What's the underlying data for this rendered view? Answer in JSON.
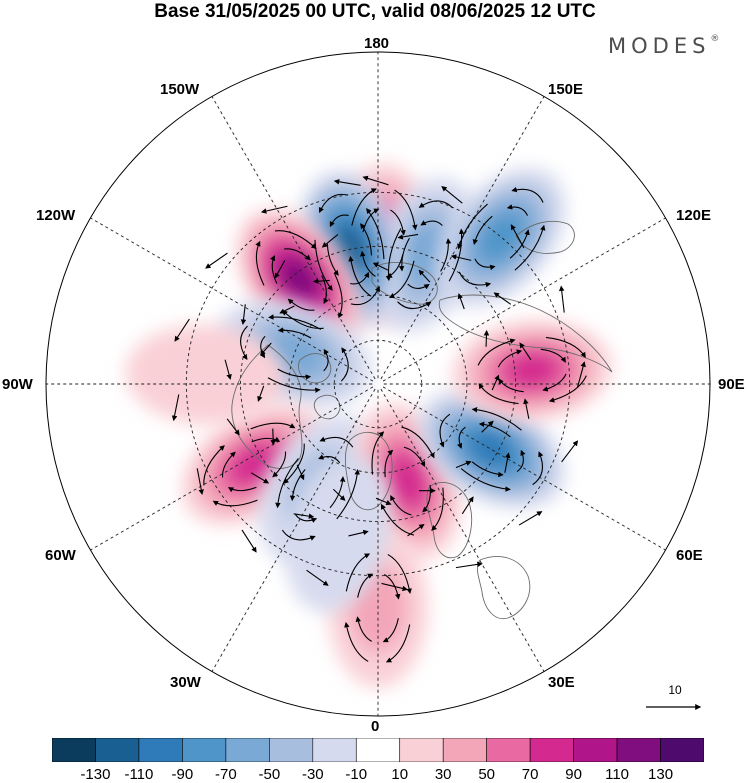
{
  "title": "Base 31/05/2025 00 UTC, valid 08/06/2025 12 UTC",
  "brand": {
    "name": "MODES",
    "mark": "®"
  },
  "longitude_labels": {
    "lon_0": "0",
    "lon_30e": "30E",
    "lon_60e": "60E",
    "lon_90e": "90E",
    "lon_120e": "120E",
    "lon_150e": "150E",
    "lon_180": "180",
    "lon_150w": "150W",
    "lon_120w": "120W",
    "lon_90w": "90W",
    "lon_60w": "60W",
    "lon_30w": "30W"
  },
  "vector_reference": {
    "label": "10"
  },
  "colorbar": {
    "labels": [
      "-130",
      "-110",
      "-90",
      "-70",
      "-50",
      "-30",
      "-10",
      "10",
      "30",
      "50",
      "70",
      "90",
      "110",
      "130"
    ],
    "colors": [
      "#0b3c5d",
      "#1a5f91",
      "#2f7ab8",
      "#4f95c9",
      "#7aa9d6",
      "#a8bedf",
      "#d6daee",
      "#ffffff",
      "#f9d0d6",
      "#f3a6b8",
      "#e96aa3",
      "#d42a8f",
      "#b0168a",
      "#800e7e",
      "#4f0a6e"
    ]
  },
  "colors": {
    "land_outline": "#6b6b6b",
    "grid": "#222222",
    "arrow": "#000000"
  },
  "anomaly_features": [
    {
      "kind": "positive",
      "name": "anomaly-north-pacific-high",
      "lon": 178,
      "lat": 44,
      "value": 80
    },
    {
      "kind": "negative",
      "name": "anomaly-bering-low",
      "lon": 160,
      "lat": 45,
      "value": -60
    },
    {
      "kind": "negative",
      "name": "anomaly-alaska-low",
      "lon": -168,
      "lat": 45,
      "value": -110
    },
    {
      "kind": "positive",
      "name": "anomaly-northwest-america-high",
      "lon": -143,
      "lat": 47,
      "value": 120
    },
    {
      "kind": "negative",
      "name": "anomaly-canada-low",
      "lon": -110,
      "lat": 60,
      "value": -60
    },
    {
      "kind": "positive",
      "name": "anomaly-atlantic-high",
      "lon": -57,
      "lat": 42,
      "value": 80
    },
    {
      "kind": "negative",
      "name": "anomaly-north-atlantic-low",
      "lon": -30,
      "lat": 50,
      "value": -30
    },
    {
      "kind": "positive",
      "name": "anomaly-europe-high",
      "lon": 17,
      "lat": 56,
      "value": 70
    },
    {
      "kind": "negative",
      "name": "anomaly-west-siberia-low",
      "lon": 60,
      "lat": 47,
      "value": -100
    },
    {
      "kind": "positive",
      "name": "anomaly-central-asia-high",
      "lon": 95,
      "lat": 40,
      "value": 70
    },
    {
      "kind": "negative",
      "name": "anomaly-east-asia-low",
      "lon": 140,
      "lat": 30,
      "value": -70
    },
    {
      "kind": "positive",
      "name": "anomaly-north-america-weak-high",
      "lon": -93,
      "lat": 35,
      "value": 20
    },
    {
      "kind": "positive",
      "name": "anomaly-southern-europe-high",
      "lon": 0,
      "lat": 22,
      "value": 40
    },
    {
      "kind": "negative",
      "name": "anomaly-atlantic-south-low",
      "lon": -15,
      "lat": 40,
      "value": -20
    }
  ]
}
